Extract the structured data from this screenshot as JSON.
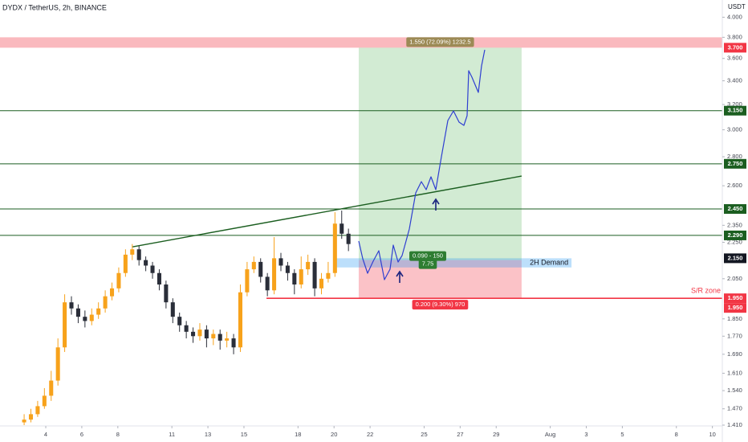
{
  "chart_data": {
    "type": "candlestick",
    "title": "DYDX / TetherUS, 2h, BINANCE",
    "y_axis_label": "USDT",
    "log_scale": true,
    "grid": false,
    "up_color": "#f7a21b",
    "down_color": "#2a2e39",
    "x": [
      2.8,
      3.175,
      3.55,
      3.925,
      4.3,
      4.675,
      5.05,
      5.425,
      5.8,
      6.175,
      6.55,
      6.925,
      7.3,
      7.675,
      8.05,
      8.425,
      8.8,
      9.175,
      9.55,
      9.925,
      10.3,
      10.675,
      11.05,
      11.425,
      11.8,
      12.175,
      12.55,
      12.925,
      13.3,
      13.675,
      14.05,
      14.425,
      14.8,
      15.175,
      15.55,
      15.925,
      16.3,
      16.675,
      17.05,
      17.425,
      17.8,
      18.175,
      18.55,
      18.925,
      19.3,
      19.675,
      20.05,
      20.425,
      20.8
    ],
    "ohlc": [
      [
        1.42,
        1.45,
        1.41,
        1.43
      ],
      [
        1.43,
        1.47,
        1.42,
        1.45
      ],
      [
        1.45,
        1.5,
        1.44,
        1.48
      ],
      [
        1.48,
        1.55,
        1.47,
        1.52
      ],
      [
        1.52,
        1.62,
        1.5,
        1.58
      ],
      [
        1.58,
        1.76,
        1.56,
        1.72
      ],
      [
        1.72,
        1.97,
        1.7,
        1.93
      ],
      [
        1.93,
        1.96,
        1.87,
        1.9
      ],
      [
        1.9,
        1.92,
        1.83,
        1.86
      ],
      [
        1.86,
        1.89,
        1.81,
        1.84
      ],
      [
        1.84,
        1.9,
        1.82,
        1.87
      ],
      [
        1.87,
        1.93,
        1.85,
        1.9
      ],
      [
        1.9,
        1.99,
        1.88,
        1.96
      ],
      [
        1.96,
        2.03,
        1.94,
        2.0
      ],
      [
        2.0,
        2.11,
        1.98,
        2.08
      ],
      [
        2.08,
        2.21,
        2.06,
        2.18
      ],
      [
        2.18,
        2.24,
        2.15,
        2.21
      ],
      [
        2.21,
        2.23,
        2.12,
        2.15
      ],
      [
        2.15,
        2.17,
        2.09,
        2.12
      ],
      [
        2.12,
        2.14,
        2.05,
        2.08
      ],
      [
        2.08,
        2.1,
        1.99,
        2.02
      ],
      [
        2.02,
        2.04,
        1.9,
        1.93
      ],
      [
        1.93,
        1.95,
        1.83,
        1.86
      ],
      [
        1.86,
        1.88,
        1.79,
        1.82
      ],
      [
        1.82,
        1.84,
        1.76,
        1.79
      ],
      [
        1.79,
        1.81,
        1.74,
        1.77
      ],
      [
        1.77,
        1.83,
        1.75,
        1.8
      ],
      [
        1.8,
        1.82,
        1.72,
        1.76
      ],
      [
        1.76,
        1.8,
        1.73,
        1.78
      ],
      [
        1.78,
        1.8,
        1.71,
        1.75
      ],
      [
        1.75,
        1.79,
        1.72,
        1.76
      ],
      [
        1.76,
        1.78,
        1.69,
        1.72
      ],
      [
        1.72,
        2.02,
        1.7,
        1.98
      ],
      [
        1.98,
        2.14,
        1.96,
        2.1
      ],
      [
        2.1,
        2.17,
        2.08,
        2.14
      ],
      [
        2.14,
        2.16,
        2.03,
        2.06
      ],
      [
        2.06,
        2.08,
        1.96,
        1.99
      ],
      [
        1.99,
        2.28,
        1.97,
        2.16
      ],
      [
        2.16,
        2.19,
        2.09,
        2.12
      ],
      [
        2.12,
        2.14,
        2.04,
        2.08
      ],
      [
        2.08,
        2.1,
        1.97,
        2.02
      ],
      [
        2.02,
        2.17,
        2.0,
        2.1
      ],
      [
        2.1,
        2.18,
        2.07,
        2.14
      ],
      [
        2.14,
        2.16,
        1.96,
        2.0
      ],
      [
        2.0,
        2.08,
        1.97,
        2.05
      ],
      [
        2.05,
        2.14,
        2.03,
        2.08
      ],
      [
        2.08,
        2.43,
        2.06,
        2.36
      ],
      [
        2.36,
        2.44,
        2.27,
        2.3
      ],
      [
        2.3,
        2.33,
        2.2,
        2.24
      ]
    ],
    "xlim": [
      1.46,
      41.55
    ],
    "xticks": [
      4,
      6,
      8,
      11,
      13,
      15,
      18,
      20,
      22,
      25,
      27,
      29,
      {
        "value": 32,
        "label": "Aug"
      },
      {
        "value": 34,
        "label": "3"
      },
      {
        "value": 36,
        "label": "5"
      },
      {
        "value": 39,
        "label": "8"
      },
      {
        "value": 41,
        "label": "10"
      }
    ],
    "ylim": [
      1.41,
      4.18
    ],
    "yticks": [
      {
        "value": 4,
        "label": "4.000"
      },
      {
        "value": 3.8,
        "label": "3.800"
      },
      {
        "value": 3.6,
        "label": "3.600"
      },
      {
        "value": 3.4,
        "label": "3.400"
      },
      {
        "value": 3.2,
        "label": "3.200"
      },
      {
        "value": 3,
        "label": "3.000"
      },
      {
        "value": 2.8,
        "label": "2.800"
      },
      {
        "value": 2.6,
        "label": "2.600"
      },
      {
        "value": 2.35,
        "label": "2.350"
      },
      {
        "value": 2.25,
        "label": "2.250"
      },
      {
        "value": 2.05,
        "label": "2.050"
      },
      {
        "value": 1.85,
        "label": "1.850"
      },
      {
        "value": 1.77,
        "label": "1.770"
      },
      {
        "value": 1.69,
        "label": "1.690"
      },
      {
        "value": 1.61,
        "label": "1.610"
      },
      {
        "value": 1.54,
        "label": "1.540"
      },
      {
        "value": 1.47,
        "label": "1.470"
      },
      {
        "value": 1.41,
        "label": "1.410"
      }
    ],
    "levels": [
      {
        "value": 3.15,
        "label": "3.150",
        "color": "#1b5e20"
      },
      {
        "value": 2.75,
        "label": "2.750",
        "color": "#1b5e20"
      },
      {
        "value": 2.45,
        "label": "2.450",
        "color": "#1b5e20"
      },
      {
        "value": 2.29,
        "label": "2.290",
        "color": "#1b5e20"
      }
    ],
    "resistance_zone": {
      "low": 3.7,
      "high": 3.8,
      "label": "3.700",
      "color": "#f23645"
    },
    "sr_level": {
      "value": 1.95,
      "label": "1.950",
      "name": "S/R zone",
      "x": [
        16.25,
        41.55
      ],
      "color": "#f23645"
    },
    "demand_zone": {
      "low": 2.11,
      "high": 2.16,
      "x": [
        20.08,
        33.18
      ],
      "name": "2H Demand",
      "label": "2.150",
      "color": "#2196f3"
    },
    "trendline": {
      "x": [
        8.81,
        30.41
      ],
      "y": [
        2.224,
        2.665
      ],
      "color": "#1b5e20"
    },
    "position": {
      "x": [
        21.37,
        30.41
      ],
      "entry": 2.15,
      "target": 3.7,
      "stop": 1.95,
      "target_label": "1.550 (72.09%) 1232.5",
      "risk_reward": "0.090 - 150",
      "ratio": 7.75,
      "stop_label": "0.200 (9.30%) 970"
    }
  }
}
